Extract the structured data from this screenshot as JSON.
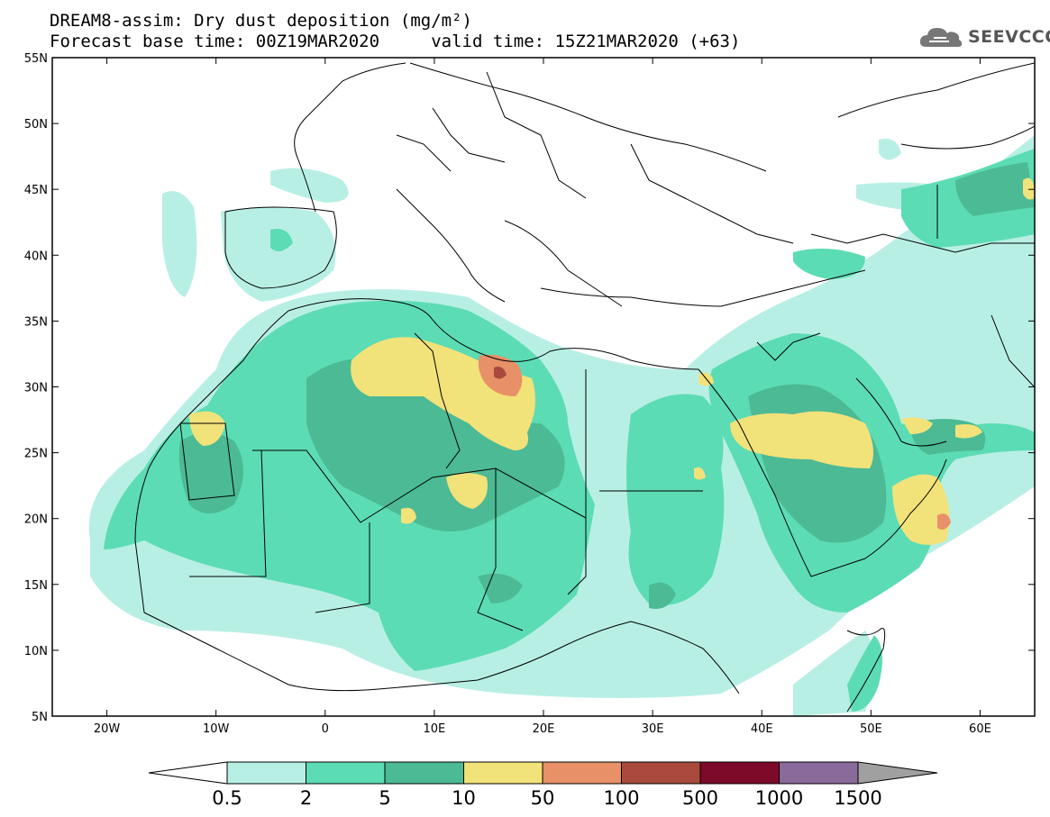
{
  "title_line1": "DREAM8-assim: Dry dust deposition (mg/m²)",
  "title_line2": "Forecast base time: 00Z19MAR2020     valid time: 15Z21MAR2020 (+63)",
  "logo_text": "SEEVCCC",
  "map": {
    "lon_range": [
      -25,
      65
    ],
    "lat_range": [
      5,
      55
    ],
    "lat_ticks": [
      {
        "value": 55,
        "label": "55N"
      },
      {
        "value": 50,
        "label": "50N"
      },
      {
        "value": 45,
        "label": "45N"
      },
      {
        "value": 40,
        "label": "40N"
      },
      {
        "value": 35,
        "label": "35N"
      },
      {
        "value": 30,
        "label": "30N"
      },
      {
        "value": 25,
        "label": "25N"
      },
      {
        "value": 20,
        "label": "20N"
      },
      {
        "value": 15,
        "label": "15N"
      },
      {
        "value": 10,
        "label": "10N"
      },
      {
        "value": 5,
        "label": "5N"
      }
    ],
    "lon_ticks": [
      {
        "value": -20,
        "label": "20W"
      },
      {
        "value": -10,
        "label": "10W"
      },
      {
        "value": 0,
        "label": "0"
      },
      {
        "value": 10,
        "label": "10E"
      },
      {
        "value": 20,
        "label": "20E"
      },
      {
        "value": 30,
        "label": "30E"
      },
      {
        "value": 40,
        "label": "40E"
      },
      {
        "value": 50,
        "label": "50E"
      },
      {
        "value": 60,
        "label": "60E"
      }
    ]
  },
  "colorbar": {
    "labels": [
      "0.5",
      "2",
      "5",
      "10",
      "50",
      "100",
      "500",
      "1000",
      "1500"
    ],
    "colors": [
      "#b8efe4",
      "#5cdcb4",
      "#4cba94",
      "#f2e27a",
      "#e89068",
      "#a94a3c",
      "#7e0a2a",
      "#8a6a9a"
    ]
  },
  "colors": {
    "c1": "#b8efe4",
    "c2": "#5cdcb4",
    "c3": "#4cba94",
    "c4": "#f2e27a",
    "c5": "#e89068",
    "c6": "#a94a3c",
    "border": "#000000"
  }
}
